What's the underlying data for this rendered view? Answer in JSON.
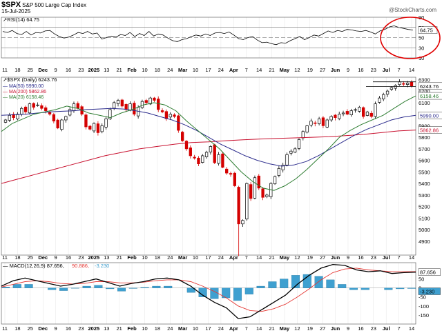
{
  "header": {
    "symbol": "$SPX",
    "name": "S&P 500 Large Cap Index",
    "date": "15-Jul-2025",
    "credit": "@StockCharts.com"
  },
  "colors": {
    "up": "#000000",
    "down": "#d40000",
    "ma50": "#2b2b8c",
    "ma200": "#c8102e",
    "ma20": "#2e7d32",
    "rsi": "#000000",
    "macd": "#000000",
    "signal": "#e53935",
    "histogram": "#3fa0d0",
    "highlight": "#e00000"
  },
  "chart_data": [
    {
      "type": "line",
      "panel": "rsi",
      "legend": "RSI(14) 64.75",
      "last_value_label": "64.75",
      "ylim": [
        10,
        90
      ],
      "yticks": [
        "90",
        "70",
        "50",
        "30",
        "10"
      ],
      "reference_lines": [
        70,
        50,
        30
      ],
      "values": [
        62,
        60,
        64,
        58,
        56,
        62,
        55,
        60,
        59,
        63,
        64,
        57,
        52,
        49,
        51,
        55,
        60,
        58,
        62,
        57,
        59,
        47,
        50,
        53,
        51,
        56,
        54,
        60,
        52,
        58,
        54,
        62,
        53,
        57,
        55,
        49,
        44,
        42,
        46,
        48,
        52,
        55,
        53,
        57,
        54,
        59,
        60,
        58,
        61,
        55,
        48,
        46,
        50,
        52,
        45,
        40,
        41,
        38,
        36,
        40,
        39,
        44,
        48,
        52,
        46,
        50,
        55,
        53,
        58,
        63,
        60,
        64,
        62,
        66,
        65,
        63,
        62,
        64,
        61,
        57,
        63,
        66,
        71,
        73,
        70,
        68,
        66,
        64.75
      ],
      "annotation": "red circle around latest RSI readings"
    },
    {
      "type": "candlestick",
      "panel": "price",
      "legend": [
        "$SPX (Daily) 6243.76",
        "MA(50) 5990.00",
        "MA(200) 5862.86",
        "MA(20) 6158.46"
      ],
      "last_labels": [
        "6243.76",
        "6158.46",
        "5990.00",
        "5862.86"
      ],
      "ylim": [
        4780,
        6320
      ],
      "yticks": [
        "6300",
        "6200",
        "6100",
        "6000",
        "5900",
        "5800",
        "5700",
        "5600",
        "5500",
        "5400",
        "5300",
        "5200",
        "5100",
        "5000",
        "4900"
      ],
      "closes": [
        5950,
        5990,
        5970,
        6000,
        6050,
        6020,
        6090,
        6060,
        6080,
        6050,
        6030,
        6000,
        5940,
        5880,
        5950,
        5980,
        6040,
        6090,
        6050,
        6000,
        5890,
        5870,
        5920,
        5840,
        5900,
        5960,
        6040,
        6100,
        6120,
        6070,
        6040,
        6090,
        6000,
        6060,
        6110,
        6100,
        6140,
        6120,
        6040,
        6020,
        5960,
        6000,
        5980,
        5860,
        5770,
        5700,
        5640,
        5620,
        5570,
        5640,
        5670,
        5720,
        5580,
        5650,
        5540,
        5490,
        5480,
        5380,
        5050,
        5080,
        5400,
        5270,
        5450,
        5360,
        5280,
        5300,
        5400,
        5460,
        5530,
        5560,
        5650,
        5680,
        5700,
        5780,
        5850,
        5900,
        5940,
        5920,
        5960,
        5900,
        5950,
        5980,
        5970,
        6000,
        6010,
        6000,
        6030,
        6040,
        6060,
        5980,
        6020,
        5980,
        6090,
        6140,
        6170,
        6200,
        6230,
        6250,
        6280,
        6260,
        6270,
        6243.76
      ],
      "ma50": [
        5990,
        5995,
        6000,
        6010,
        6020,
        6025,
        6030,
        6040,
        6045,
        6050,
        6045,
        6030,
        6010,
        5980,
        5950,
        5910,
        5860,
        5800,
        5740,
        5690,
        5640,
        5600,
        5570,
        5550,
        5560,
        5590,
        5640,
        5700,
        5760,
        5820,
        5870,
        5910,
        5950,
        5975,
        5990
      ],
      "ma200": [
        5400,
        5440,
        5480,
        5520,
        5560,
        5600,
        5640,
        5670,
        5700,
        5720,
        5740,
        5755,
        5760,
        5770,
        5778,
        5785,
        5790,
        5795,
        5800,
        5805,
        5815,
        5825,
        5840,
        5855,
        5862.86
      ],
      "ma20": [
        5850,
        5920,
        5960,
        6000,
        6020,
        6040,
        6070,
        6050,
        6010,
        5990,
        5970,
        6010,
        6040,
        6080,
        6100,
        6080,
        6030,
        5940,
        5860,
        5780,
        5700,
        5600,
        5500,
        5420,
        5360,
        5340,
        5380,
        5440,
        5520,
        5610,
        5700,
        5800,
        5860,
        5910,
        5950,
        5990,
        6050,
        6110,
        6158.46
      ],
      "annotation": "horizontal lines near the highs at right"
    },
    {
      "type": "line",
      "panel": "macd",
      "legend": [
        "MACD(12,26,9) 87.656",
        "90.886",
        "-3.230"
      ],
      "last_labels": [
        "87.656",
        "-3.230"
      ],
      "ylim": [
        -200,
        140
      ],
      "yticks": [
        "100",
        "50",
        "0",
        "-50",
        "-100",
        "-150"
      ],
      "macd": [
        10,
        40,
        55,
        40,
        25,
        10,
        20,
        35,
        50,
        30,
        10,
        25,
        35,
        50,
        55,
        45,
        10,
        -40,
        -80,
        -110,
        -170,
        -160,
        -120,
        -80,
        -40,
        20,
        70,
        110,
        130,
        125,
        100,
        90,
        95,
        80,
        85,
        87.656
      ],
      "signal": [
        5,
        20,
        35,
        40,
        35,
        25,
        22,
        25,
        35,
        35,
        28,
        28,
        32,
        40,
        45,
        45,
        35,
        10,
        -20,
        -55,
        -100,
        -125,
        -130,
        -115,
        -90,
        -50,
        -5,
        45,
        85,
        105,
        110,
        100,
        95,
        90,
        90,
        90.886
      ],
      "histogram": [
        5,
        20,
        20,
        0,
        -10,
        -15,
        -2,
        10,
        15,
        -5,
        -18,
        -3,
        3,
        10,
        10,
        0,
        -25,
        -50,
        -60,
        -55,
        -70,
        -35,
        10,
        35,
        50,
        70,
        75,
        65,
        45,
        20,
        -10,
        -10,
        0,
        -10,
        -5,
        -3.23
      ]
    }
  ],
  "x_axis": {
    "labels": [
      "11",
      "18",
      "25",
      "Dec",
      "9",
      "16",
      "23",
      "2025",
      "13",
      "21",
      "Feb",
      "10",
      "18",
      "24",
      "Mar",
      "10",
      "17",
      "24",
      "Apr",
      "7",
      "14",
      "21",
      "May",
      "12",
      "19",
      "27",
      "Jun",
      "9",
      "16",
      "23",
      "Jul",
      "7",
      "14"
    ],
    "bold": [
      "Dec",
      "2025",
      "Feb",
      "Mar",
      "Apr",
      "May",
      "Jun",
      "Jul"
    ]
  }
}
